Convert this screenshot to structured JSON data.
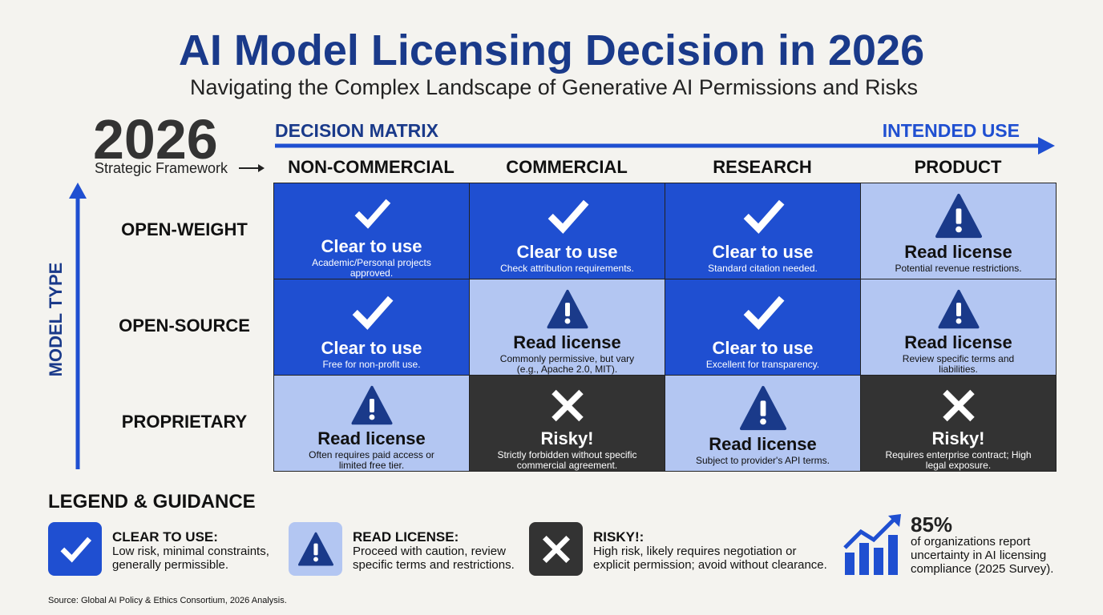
{
  "header": {
    "title": "AI Model Licensing Decision in 2026",
    "subtitle": "Navigating the Complex Landscape of Generative AI Permissions and Risks"
  },
  "badge": {
    "year": "2026",
    "caption": "Strategic Framework"
  },
  "matrix": {
    "title": "DECISION MATRIX",
    "x_axis": "INTENDED USE",
    "y_axis": "MODEL TYPE",
    "columns": [
      "NON-COMMERCIAL",
      "COMMERCIAL",
      "RESEARCH",
      "PRODUCT"
    ],
    "rows": [
      {
        "label": "OPEN-WEIGHT",
        "cells": [
          {
            "icon": "check",
            "fill": "#1f4fd1",
            "heading": "Clear to use",
            "note": "Academic/Personal projects approved."
          },
          {
            "icon": "check",
            "fill": "#1f4fd1",
            "heading": "Clear to use",
            "note": "Check attribution requirements."
          },
          {
            "icon": "check",
            "fill": "#1f4fd1",
            "heading": "Clear to use",
            "note": "Standard citation needed."
          },
          {
            "icon": "warning",
            "fill": "#b3c6f2",
            "heading": "Read license",
            "note": "Potential revenue restrictions."
          }
        ]
      },
      {
        "label": "OPEN-SOURCE",
        "cells": [
          {
            "icon": "check",
            "fill": "#1f4fd1",
            "heading": "Clear to use",
            "note": "Free for non-profit use."
          },
          {
            "icon": "warning",
            "fill": "#b3c6f2",
            "heading": "Read license",
            "note": "Commonly permissive, but vary (e.g., Apache 2.0, MIT)."
          },
          {
            "icon": "check",
            "fill": "#1f4fd1",
            "heading": "Clear to use",
            "note": "Excellent for transparency."
          },
          {
            "icon": "warning",
            "fill": "#b3c6f2",
            "heading": "Read license",
            "note": "Review specific terms and liabilities."
          }
        ]
      },
      {
        "label": "PROPRIETARY",
        "cells": [
          {
            "icon": "warning",
            "fill": "#b3c6f2",
            "heading": "Read license",
            "note": "Often requires paid access or limited free tier."
          },
          {
            "icon": "cross",
            "fill": "#333333",
            "heading": "Risky!",
            "note": "Strictly forbidden without specific commercial agreement."
          },
          {
            "icon": "warning",
            "fill": "#b3c6f2",
            "heading": "Read license",
            "note": "Subject to provider's API terms."
          },
          {
            "icon": "cross",
            "fill": "#333333",
            "heading": "Risky!",
            "note": "Requires enterprise contract; High legal exposure."
          }
        ]
      }
    ]
  },
  "legend": {
    "title": "LEGEND & GUIDANCE",
    "items": [
      {
        "icon": "check",
        "fill": "#1f4fd1",
        "title": "CLEAR TO USE:",
        "text": "Low risk, minimal constraints, generally permissible."
      },
      {
        "icon": "warning",
        "fill": "#b3c6f2",
        "title": "READ LICENSE:",
        "text": "Proceed with caution, review specific terms and restrictions."
      },
      {
        "icon": "cross",
        "fill": "#333333",
        "title": "RISKY!:",
        "text": "High risk, likely requires negotiation or explicit permission; avoid without clearance."
      }
    ]
  },
  "stat": {
    "value": "85%",
    "text": "of organizations report uncertainty in AI licensing compliance (2025 Survey)."
  },
  "source": "Source: Global AI Policy & Ethics Consortium, 2026 Analysis."
}
